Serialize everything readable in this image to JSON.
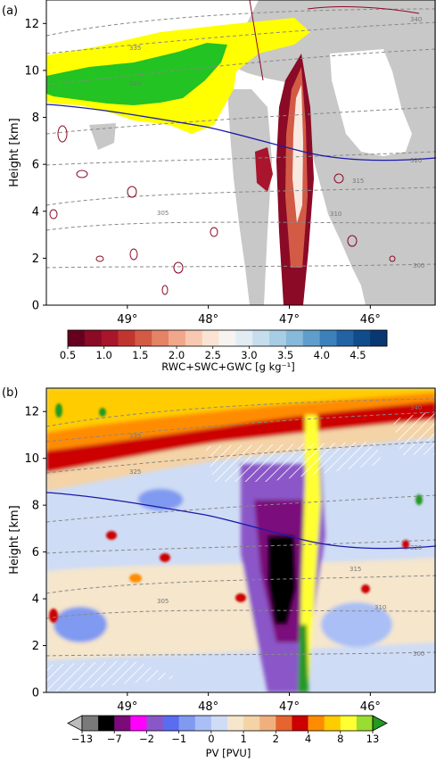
{
  "chart_data": [
    {
      "type": "heatmap",
      "panel_label": "(a)",
      "ylabel": "Height [km]",
      "xlabel": "",
      "x_ticks": [
        "49°",
        "48°",
        "47°",
        "46°"
      ],
      "y_ticks": [
        0,
        2,
        4,
        6,
        8,
        10,
        12
      ],
      "xlim": [
        50.0,
        45.2
      ],
      "ylim": [
        0,
        13
      ],
      "colorbar": {
        "label": "RWC+SWC+GWC [g kg⁻¹]",
        "ticks": [
          "0.5",
          "1.0",
          "1.5",
          "2.0",
          "2.5",
          "3.0",
          "3.5",
          "4.0",
          "4.5"
        ],
        "range": [
          0.5,
          4.9
        ],
        "colors": [
          "#67001f",
          "#8b0a26",
          "#a8152c",
          "#c0362f",
          "#d35a45",
          "#e48365",
          "#f2a78b",
          "#f8c8b0",
          "#fbe3d4",
          "#f7f3f0",
          "#e1ecf3",
          "#c5ddec",
          "#a7cde4",
          "#86b9da",
          "#5f9ecc",
          "#3c81bb",
          "#2163a5",
          "#104c8c",
          "#083772"
        ]
      },
      "contour_labels": [
        "340",
        "335",
        "330",
        "325",
        "320",
        "315",
        "310",
        "305",
        "300"
      ],
      "tropopause_label": "320"
    },
    {
      "type": "heatmap",
      "panel_label": "(b)",
      "ylabel": "Height [km]",
      "xlabel": "",
      "x_ticks": [
        "49°",
        "48°",
        "47°",
        "46°"
      ],
      "y_ticks": [
        0,
        2,
        4,
        6,
        8,
        10,
        12
      ],
      "xlim": [
        50.0,
        45.2
      ],
      "ylim": [
        0,
        13
      ],
      "colorbar": {
        "label": "PV [PVU]",
        "ticks": [
          "−13",
          "−7",
          "−2",
          "−1",
          "0",
          "1",
          "2",
          "4",
          "8",
          "13"
        ],
        "tick_positions": [
          1,
          3,
          5,
          7,
          9,
          11,
          13,
          15,
          17,
          19
        ],
        "colors": [
          "#bdbdbd",
          "#7a7a7a",
          "#000000",
          "#7b0a7b",
          "#ff00ff",
          "#8a57c8",
          "#5b6cf0",
          "#7f9af0",
          "#a9bff5",
          "#cfdcf5",
          "#f5e6cc",
          "#f4d3a6",
          "#f0b07e",
          "#e6642e",
          "#cc0000",
          "#ff8c00",
          "#ffcc00",
          "#ffff33",
          "#99dd33",
          "#229922"
        ],
        "extend": "both"
      },
      "contour_labels": [
        "340",
        "335",
        "330",
        "325",
        "320",
        "315",
        "310",
        "305",
        "300"
      ],
      "tropopause_label": "320"
    }
  ]
}
